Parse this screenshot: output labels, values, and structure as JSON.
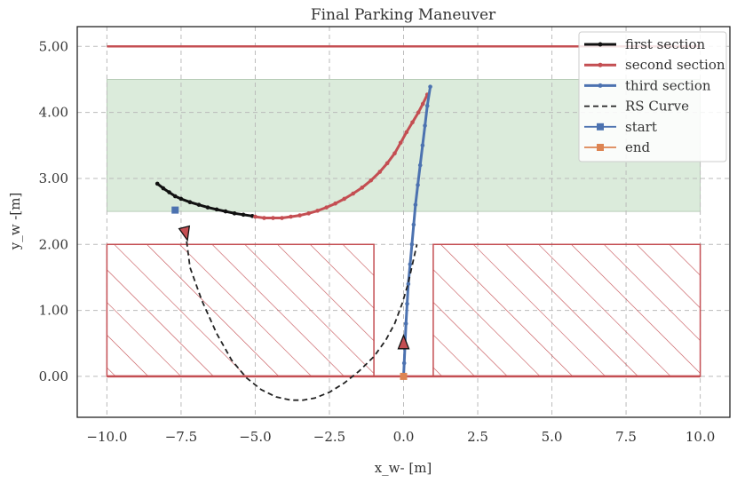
{
  "chart_data": {
    "type": "line",
    "title": "Final Parking Maneuver",
    "xlabel": "x_w- [m]",
    "ylabel": "y_w -[m]",
    "xlim": [
      -11.0,
      11.0
    ],
    "ylim": [
      -0.62,
      5.3
    ],
    "xticks": [
      -10.0,
      -7.5,
      -5.0,
      -2.5,
      0.0,
      2.5,
      5.0,
      7.5,
      10.0
    ],
    "xtick_labels": [
      "−10.0",
      "−7.5",
      "−5.0",
      "−2.5",
      "0.0",
      "2.5",
      "5.0",
      "7.5",
      "10.0"
    ],
    "yticks": [
      0.0,
      1.0,
      2.0,
      3.0,
      4.0,
      5.0
    ],
    "ytick_labels": [
      "0.00",
      "1.00",
      "2.00",
      "3.00",
      "4.00",
      "5.00"
    ],
    "grid": true,
    "legend_position": "top-right",
    "colors": {
      "first": "#111111",
      "second": "#c44e52",
      "third": "#4c72b0",
      "rs": "#222222",
      "start": "#4c72b0",
      "end": "#dd8452",
      "goal_region": "#c8e0c8",
      "obstacle": "#c44e52"
    },
    "regions": {
      "goal_area": {
        "x": [
          -10.0,
          10.0
        ],
        "y": [
          2.5,
          4.5
        ]
      },
      "upper_boundary": {
        "x": [
          -10.0,
          10.0
        ],
        "y": 5.0
      },
      "lower_boundary": {
        "x": [
          -10.0,
          10.0
        ],
        "y": 0.0
      },
      "obstacles": [
        {
          "x": [
            -10.0,
            -1.0
          ],
          "y": [
            0.0,
            2.0
          ]
        },
        {
          "x": [
            1.0,
            10.0
          ],
          "y": [
            0.0,
            2.0
          ]
        }
      ]
    },
    "series": [
      {
        "name": "first section",
        "marker": "dot",
        "x": [
          -8.3,
          -8.1,
          -7.9,
          -7.7,
          -7.5,
          -7.2,
          -6.9,
          -6.6,
          -6.3,
          -6.0,
          -5.7,
          -5.4,
          -5.1
        ],
        "y": [
          2.92,
          2.85,
          2.79,
          2.73,
          2.69,
          2.64,
          2.6,
          2.56,
          2.53,
          2.5,
          2.47,
          2.45,
          2.43
        ]
      },
      {
        "name": "second section",
        "marker": "dot",
        "x": [
          -5.0,
          -4.7,
          -4.4,
          -4.1,
          -3.8,
          -3.5,
          -3.2,
          -2.9,
          -2.6,
          -2.3,
          -2.0,
          -1.7,
          -1.4,
          -1.1,
          -0.8,
          -0.55,
          -0.3,
          -0.1,
          0.1,
          0.3,
          0.5,
          0.65,
          0.8
        ],
        "y": [
          2.42,
          2.4,
          2.4,
          2.4,
          2.42,
          2.44,
          2.47,
          2.51,
          2.56,
          2.62,
          2.69,
          2.77,
          2.86,
          2.97,
          3.1,
          3.23,
          3.38,
          3.54,
          3.7,
          3.85,
          4.0,
          4.13,
          4.27
        ]
      },
      {
        "name": "third section",
        "marker": "dot",
        "x": [
          0.9,
          0.8,
          0.72,
          0.64,
          0.56,
          0.48,
          0.4,
          0.34,
          0.28,
          0.22,
          0.16,
          0.12,
          0.08,
          0.05,
          0.02,
          0.0
        ],
        "y": [
          4.39,
          4.1,
          3.8,
          3.5,
          3.2,
          2.9,
          2.6,
          2.3,
          2.0,
          1.7,
          1.4,
          1.1,
          0.8,
          0.5,
          0.2,
          0.0
        ]
      },
      {
        "name": "RS Curve",
        "marker": "none",
        "dashed": true,
        "x": [
          -7.35,
          -7.2,
          -6.8,
          -6.3,
          -5.8,
          -5.3,
          -4.8,
          -4.3,
          -3.8,
          -3.4,
          -3.0,
          -2.5,
          -2.0,
          -1.5,
          -1.0,
          -0.6,
          -0.3,
          -0.05,
          0.15,
          0.3,
          0.45
        ],
        "y": [
          2.18,
          1.65,
          1.15,
          0.65,
          0.25,
          -0.02,
          -0.2,
          -0.31,
          -0.36,
          -0.36,
          -0.33,
          -0.24,
          -0.1,
          0.08,
          0.3,
          0.55,
          0.8,
          1.1,
          1.4,
          1.7,
          2.0
        ]
      },
      {
        "name": "start",
        "marker": "square",
        "x": [
          -7.7
        ],
        "y": [
          2.52
        ]
      },
      {
        "name": "end",
        "marker": "square",
        "x": [
          0.0
        ],
        "y": [
          0.0
        ]
      }
    ],
    "arrows": [
      {
        "x": -7.35,
        "y": 2.18,
        "dir_x": 0.25,
        "dir_y": -1.0
      },
      {
        "x": 0.0,
        "y": 0.5,
        "dir_x": 0.0,
        "dir_y": 1.0
      }
    ]
  }
}
